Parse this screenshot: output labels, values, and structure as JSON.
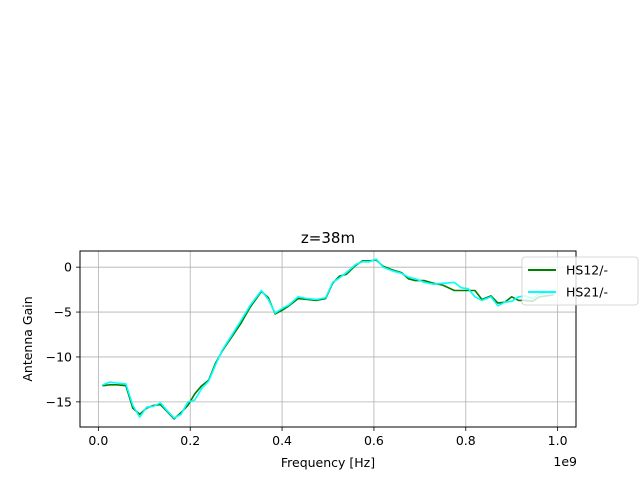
{
  "chart_data": {
    "type": "line",
    "title": "z=38m",
    "xlabel": "Frequency [Hz]",
    "ylabel": "Antenna Gain",
    "x_offset_label": "1e9",
    "xlim": [
      -0.04,
      1.04
    ],
    "ylim": [
      -17.8,
      1.8
    ],
    "xticks": [
      0.0,
      0.2,
      0.4,
      0.6,
      0.8,
      1.0
    ],
    "xtick_labels": [
      "0.0",
      "0.2",
      "0.4",
      "0.6",
      "0.8",
      "1.0"
    ],
    "yticks": [
      0,
      -5,
      -10,
      -15
    ],
    "ytick_labels": [
      "0",
      "−5",
      "−10",
      "−15"
    ],
    "grid": true,
    "legend_position": "upper-right",
    "x": [
      0.01,
      0.025,
      0.04,
      0.06,
      0.075,
      0.09,
      0.105,
      0.12,
      0.135,
      0.15,
      0.165,
      0.18,
      0.195,
      0.21,
      0.225,
      0.24,
      0.255,
      0.27,
      0.29,
      0.31,
      0.33,
      0.355,
      0.37,
      0.385,
      0.4,
      0.415,
      0.435,
      0.455,
      0.475,
      0.495,
      0.51,
      0.525,
      0.54,
      0.56,
      0.575,
      0.59,
      0.605,
      0.62,
      0.64,
      0.66,
      0.675,
      0.69,
      0.71,
      0.73,
      0.75,
      0.775,
      0.79,
      0.805,
      0.82,
      0.835,
      0.855,
      0.87,
      0.885,
      0.9,
      0.915,
      0.93,
      0.945,
      0.96,
      0.975,
      0.99
    ],
    "series": [
      {
        "name": "HS12/-",
        "color": "#008000",
        "values": [
          -13.2,
          -13.1,
          -13.1,
          -13.2,
          -15.7,
          -16.4,
          -15.7,
          -15.4,
          -15.3,
          -16.1,
          -16.9,
          -16.2,
          -15.4,
          -14.1,
          -13.2,
          -12.6,
          -10.7,
          -9.3,
          -7.8,
          -6.3,
          -4.5,
          -2.7,
          -3.4,
          -5.2,
          -4.8,
          -4.3,
          -3.5,
          -3.6,
          -3.7,
          -3.5,
          -1.8,
          -1.0,
          -0.8,
          0.2,
          0.7,
          0.7,
          0.8,
          0.1,
          -0.3,
          -0.6,
          -1.3,
          -1.5,
          -1.5,
          -1.8,
          -2.0,
          -2.6,
          -2.6,
          -2.6,
          -2.6,
          -3.6,
          -3.2,
          -4.0,
          -3.9,
          -3.3,
          -3.7,
          -3.7,
          -3.8,
          -3.3,
          -3.2,
          -3.1
        ]
      },
      {
        "name": "HS21/-",
        "color": "#00ffff",
        "values": [
          -13.1,
          -12.8,
          -12.9,
          -13.0,
          -15.4,
          -16.7,
          -15.6,
          -15.5,
          -15.1,
          -16.0,
          -16.8,
          -16.4,
          -15.0,
          -14.8,
          -13.5,
          -12.7,
          -10.9,
          -9.2,
          -7.6,
          -6.0,
          -4.3,
          -2.6,
          -3.6,
          -5.1,
          -4.6,
          -4.2,
          -3.3,
          -3.5,
          -3.6,
          -3.4,
          -1.7,
          -1.2,
          -0.6,
          0.3,
          0.6,
          0.6,
          0.9,
          0.0,
          -0.4,
          -0.7,
          -1.1,
          -1.3,
          -1.7,
          -1.9,
          -1.8,
          -1.7,
          -2.3,
          -2.4,
          -3.3,
          -3.7,
          -3.3,
          -4.3,
          -3.9,
          -3.8,
          -3.3,
          -3.2,
          -3.5,
          -3.0,
          -2.8,
          -2.9
        ]
      }
    ]
  }
}
